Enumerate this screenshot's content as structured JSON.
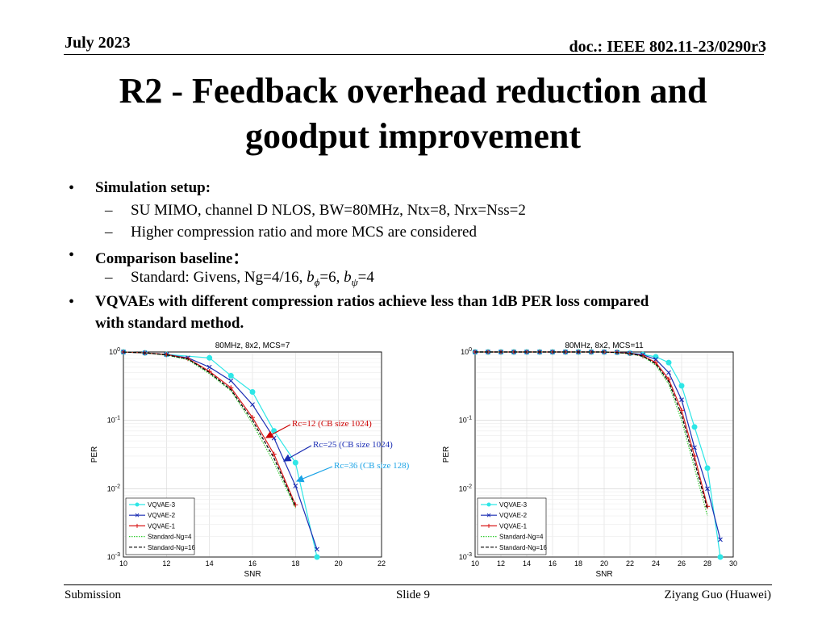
{
  "header": {
    "date": "July 2023",
    "doc": "doc.: IEEE 802.11-23/0290r3"
  },
  "title": {
    "line1": "R2 - Feedback overhead reduction and",
    "line2": "goodput improvement"
  },
  "bullets": {
    "b1": "Simulation setup:",
    "b1_s1": "SU MIMO, channel D NLOS, BW=80MHz, Ntx=8, Nrx=Nss=2",
    "b1_s2": "Higher compression ratio and more MCS are considered",
    "b2": "Comparison baseline：",
    "b2_s1_prefix": "Standard: Givens, Ng=4/16, ",
    "b2_s1_b": "b",
    "b2_s1_phi": "ϕ",
    "b2_s1_mid": "=6, ",
    "b2_s1_psi": "ψ",
    "b2_s1_end": "=4",
    "b3_l1": "VQVAEs with different compression ratios achieve less than 1dB PER loss compared",
    "b3_l2": "with standard method.",
    "dash": "–",
    "dot": "•"
  },
  "annotations": {
    "a1": "Rc=12 (CB size 1024)",
    "a2": "Rc=25 (CB size 1024)",
    "a3": "Rc=36 (CB size 128)"
  },
  "colors": {
    "vqvae3": "#2ee6e6",
    "vqvae2": "#1a2db3",
    "vqvae1": "#d91a1a",
    "ng4": "#33cc33",
    "ng16": "#000000",
    "a1": "#cc0000",
    "a2": "#1a2db3",
    "a3": "#1aa3e6"
  },
  "chart_data": [
    {
      "type": "line",
      "title": "80MHz, 8x2, MCS=7",
      "xlabel": "SNR",
      "ylabel": "PER",
      "xlim": [
        10,
        22
      ],
      "ylim": [
        0.001,
        1
      ],
      "yscale": "log",
      "grid": true,
      "legend": "bottom-left",
      "xticks": [
        "10",
        "12",
        "14",
        "16",
        "18",
        "20",
        "22"
      ],
      "series": [
        {
          "name": "VQVAE-3",
          "marker": "circle",
          "style": "solid",
          "x": [
            10,
            11,
            12,
            14,
            15,
            16,
            17,
            18,
            19
          ],
          "y": [
            1,
            0.97,
            0.92,
            0.82,
            0.45,
            0.26,
            0.07,
            0.024,
            0.001
          ]
        },
        {
          "name": "VQVAE-2",
          "marker": "x",
          "style": "solid",
          "x": [
            10,
            11,
            12,
            13,
            14,
            15,
            16,
            17,
            18,
            19
          ],
          "y": [
            1,
            0.97,
            0.92,
            0.82,
            0.6,
            0.38,
            0.17,
            0.055,
            0.011,
            0.0013
          ]
        },
        {
          "name": "VQVAE-1",
          "marker": "plus",
          "style": "solid",
          "x": [
            10,
            11,
            12,
            13,
            14,
            15,
            16,
            17,
            18
          ],
          "y": [
            1,
            0.97,
            0.92,
            0.8,
            0.52,
            0.3,
            0.11,
            0.032,
            0.0058
          ]
        },
        {
          "name": "Standard-Ng=4",
          "marker": "none",
          "style": "dotted",
          "x": [
            10,
            11,
            12,
            13,
            14,
            15,
            16,
            17,
            18
          ],
          "y": [
            1,
            0.97,
            0.9,
            0.77,
            0.48,
            0.27,
            0.09,
            0.024,
            0.0052
          ]
        },
        {
          "name": "Standard-Ng=16",
          "marker": "none",
          "style": "dashed",
          "x": [
            10,
            11,
            12,
            13,
            14,
            15,
            16,
            17,
            18
          ],
          "y": [
            1,
            0.97,
            0.91,
            0.79,
            0.5,
            0.28,
            0.1,
            0.028,
            0.0055
          ]
        }
      ]
    },
    {
      "type": "line",
      "title": "80MHz, 8x2, MCS=11",
      "xlabel": "SNR",
      "ylabel": "PER",
      "xlim": [
        10,
        30
      ],
      "ylim": [
        0.001,
        1
      ],
      "yscale": "log",
      "grid": true,
      "legend": "bottom-left",
      "xticks": [
        "10",
        "12",
        "14",
        "16",
        "18",
        "20",
        "22",
        "24",
        "26",
        "28",
        "30"
      ],
      "series": [
        {
          "name": "VQVAE-3",
          "marker": "circle",
          "style": "solid",
          "x": [
            10,
            11,
            12,
            13,
            14,
            15,
            16,
            17,
            18,
            19,
            20,
            21,
            22,
            23,
            24,
            25,
            26,
            27,
            28,
            29
          ],
          "y": [
            1,
            1,
            1,
            1,
            1,
            1,
            1,
            1,
            1,
            1,
            1,
            0.99,
            0.96,
            0.92,
            0.85,
            0.7,
            0.32,
            0.08,
            0.02,
            0.001
          ]
        },
        {
          "name": "VQVAE-2",
          "marker": "x",
          "style": "solid",
          "x": [
            10,
            11,
            12,
            13,
            14,
            15,
            16,
            17,
            18,
            19,
            20,
            21,
            22,
            23,
            24,
            25,
            26,
            27,
            28,
            29
          ],
          "y": [
            1,
            1,
            1,
            1,
            1,
            1,
            1,
            1,
            1,
            1,
            1,
            0.99,
            0.96,
            0.91,
            0.78,
            0.5,
            0.2,
            0.04,
            0.01,
            0.0018
          ]
        },
        {
          "name": "VQVAE-1",
          "marker": "plus",
          "style": "solid",
          "x": [
            10,
            11,
            12,
            13,
            14,
            15,
            16,
            17,
            18,
            19,
            20,
            21,
            22,
            23,
            24,
            25,
            26,
            27,
            28
          ],
          "y": [
            1,
            1,
            1,
            1,
            1,
            1,
            1,
            1,
            1,
            1,
            1,
            0.99,
            0.95,
            0.88,
            0.7,
            0.4,
            0.14,
            0.03,
            0.0055
          ]
        },
        {
          "name": "Standard-Ng=4",
          "marker": "none",
          "style": "dotted",
          "x": [
            10,
            12,
            14,
            16,
            18,
            20,
            21,
            22,
            23,
            24,
            25,
            26,
            27,
            28
          ],
          "y": [
            1,
            1,
            1,
            1,
            1,
            1,
            0.98,
            0.94,
            0.86,
            0.64,
            0.34,
            0.1,
            0.02,
            0.004
          ]
        },
        {
          "name": "Standard-Ng=16",
          "marker": "none",
          "style": "dashed",
          "x": [
            10,
            12,
            14,
            16,
            18,
            20,
            21,
            22,
            23,
            24,
            25,
            26,
            27,
            28
          ],
          "y": [
            1,
            1,
            1,
            1,
            1,
            1,
            0.98,
            0.95,
            0.87,
            0.67,
            0.37,
            0.12,
            0.025,
            0.005
          ]
        }
      ]
    }
  ],
  "footer": {
    "left": "Submission",
    "center": "Slide 9",
    "right": "Ziyang Guo (Huawei)"
  }
}
